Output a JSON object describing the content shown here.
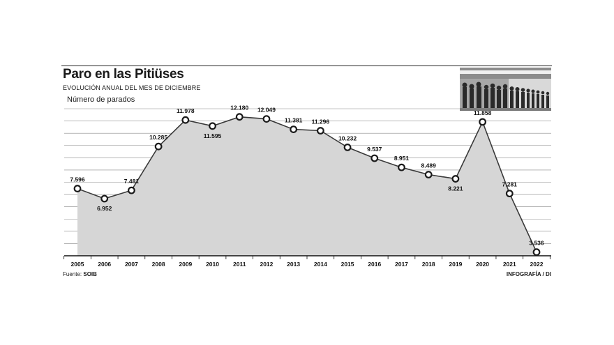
{
  "chart_data": {
    "type": "area",
    "title": "Paro en las Pitiüses",
    "subtitle": "EVOLUCIÓN ANUAL DEL MES DE DICIEMBRE",
    "ylabel": "Número de parados",
    "xlabel": "",
    "categories": [
      "2005",
      "2006",
      "2007",
      "2008",
      "2009",
      "2010",
      "2011",
      "2012",
      "2013",
      "2014",
      "2015",
      "2016",
      "2017",
      "2018",
      "2019",
      "2020",
      "2021",
      "2022"
    ],
    "values": [
      7596,
      6952,
      7481,
      10285,
      11978,
      11595,
      12180,
      12049,
      11381,
      11296,
      10232,
      9537,
      8951,
      8489,
      8221,
      11858,
      7281,
      3536
    ],
    "value_labels": [
      "7.596",
      "6.952",
      "7.481",
      "10.285",
      "11.978",
      "11.595",
      "12.180",
      "12.049",
      "11.381",
      "11.296",
      "10.232",
      "9.537",
      "8.951",
      "8.489",
      "8.221",
      "11.858",
      "7.281",
      "3.536"
    ],
    "ylim": [
      3300,
      12700
    ],
    "grid": true,
    "legend": "none"
  },
  "colors": {
    "area": "#d6d6d6",
    "line": "#3a3a3a",
    "marker_fill": "#ffffff",
    "marker_stroke": "#1a1a1a",
    "grid": "#8a8a8a"
  },
  "photo": {
    "icon": "crowd-queue-photo"
  },
  "footer": {
    "source_prefix": "Fuente:",
    "source_name": "SOIB",
    "credit": "INFOGRAFÍA / DI"
  }
}
